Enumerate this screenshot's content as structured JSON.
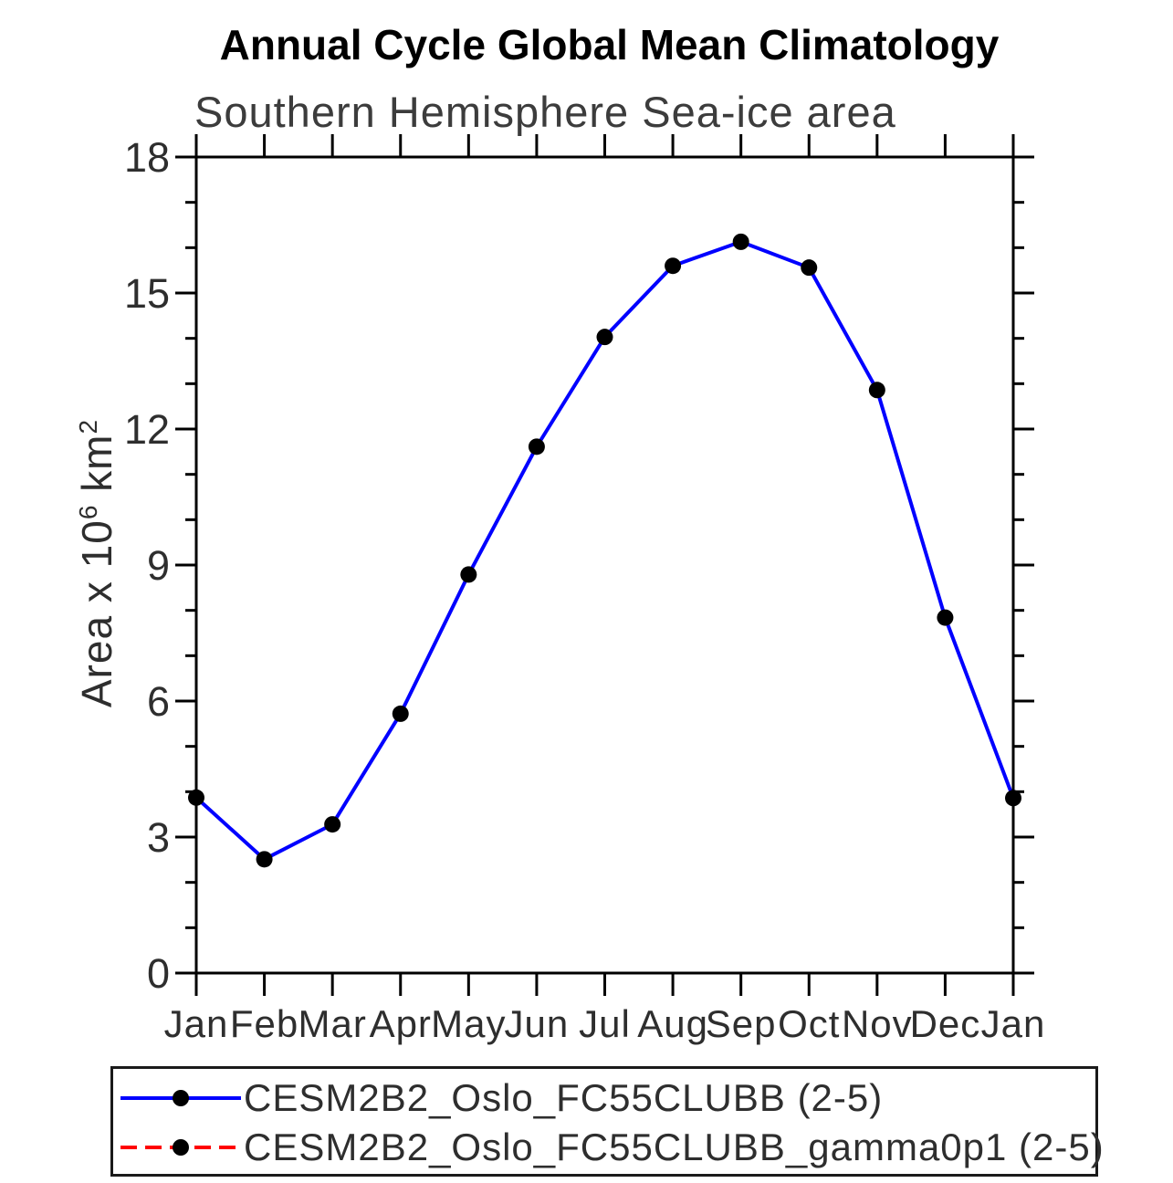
{
  "page": {
    "background": "#ffffff"
  },
  "chart_data": {
    "type": "line",
    "title": "Annual Cycle Global Mean Climatology",
    "subtitle": "Southern Hemisphere Sea-ice area",
    "ylabel": "Area x 10^6 km^2",
    "ylabel_parts": {
      "prefix": "Area x 10",
      "sup1": "6",
      "mid": " km",
      "sup2": "2"
    },
    "xlabel": "",
    "categories": [
      "Jan",
      "Feb",
      "Mar",
      "Apr",
      "May",
      "Jun",
      "Jul",
      "Aug",
      "Sep",
      "Oct",
      "Nov",
      "Dec",
      "Jan"
    ],
    "ylim": [
      0,
      18
    ],
    "ytick_major": [
      0,
      3,
      6,
      9,
      12,
      15,
      18
    ],
    "ytick_minor_step": 1,
    "grid": false,
    "legend_position": "bottom-box",
    "series": [
      {
        "name": "CESM2B2_Oslo_FC55CLUBB (2-5)",
        "line_color": "#0000ff",
        "line_style": "solid",
        "marker": "filled-circle",
        "marker_color": "#000000",
        "visible_in_plot": true,
        "values": [
          3.87,
          2.51,
          3.28,
          5.72,
          8.79,
          11.61,
          14.03,
          15.6,
          16.13,
          15.56,
          12.86,
          7.84,
          3.86
        ]
      },
      {
        "name": "CESM2B2_Oslo_FC55CLUBB_gamma0p1 (2-5)",
        "line_color": "#ff0000",
        "line_style": "dashed",
        "marker": "filled-circle",
        "marker_color": "#000000",
        "visible_in_plot": false
      }
    ],
    "axis_color": "#000000",
    "tick_label_color": "#2e2e2e"
  }
}
